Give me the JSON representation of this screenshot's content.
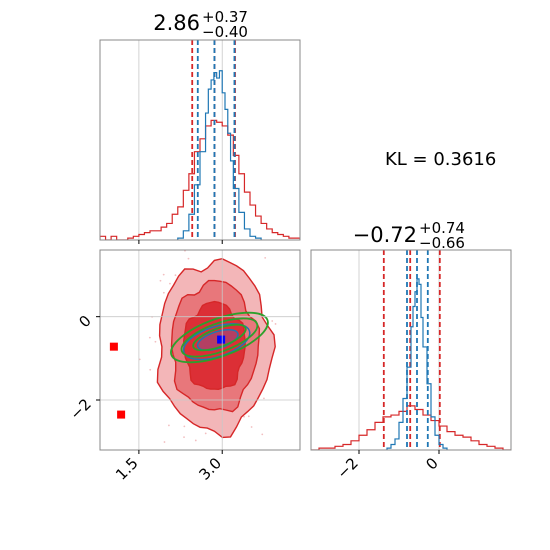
{
  "kl_annotation": "KL = 0.3616",
  "colors": {
    "sample_a": "#d62728",
    "sample_b": "#1f77b4",
    "gaussian": "#2ca02c",
    "marker_a": "#ff0000",
    "marker_b": "#0000ff",
    "grid": "#c8c8c8"
  },
  "chart_data": [
    {
      "type": "histogram",
      "panel": "top-left",
      "title": {
        "value": "2.86",
        "upper": "+0.37",
        "lower": "−0.40"
      },
      "xlim": [
        0.8,
        4.4
      ],
      "grid_x": [
        1.5,
        3.0
      ],
      "series": [
        {
          "name": "",
          "color": "#d62728",
          "quantiles": [
            2.46,
            2.86,
            3.23
          ],
          "bins": [
            [
              0.8,
              0.02
            ],
            [
              0.9,
              0.0
            ],
            [
              1.0,
              0.02
            ],
            [
              1.1,
              0.0
            ],
            [
              1.2,
              0.0
            ],
            [
              1.3,
              0.01
            ],
            [
              1.4,
              0.02
            ],
            [
              1.5,
              0.03
            ],
            [
              1.6,
              0.04
            ],
            [
              1.7,
              0.05
            ],
            [
              1.8,
              0.05
            ],
            [
              1.9,
              0.07
            ],
            [
              2.0,
              0.09
            ],
            [
              2.1,
              0.14
            ],
            [
              2.2,
              0.18
            ],
            [
              2.3,
              0.27
            ],
            [
              2.4,
              0.36
            ],
            [
              2.5,
              0.48
            ],
            [
              2.6,
              0.55
            ],
            [
              2.7,
              0.62
            ],
            [
              2.8,
              0.65
            ],
            [
              2.9,
              0.64
            ],
            [
              3.0,
              0.62
            ],
            [
              3.1,
              0.57
            ],
            [
              3.2,
              0.46
            ],
            [
              3.3,
              0.36
            ],
            [
              3.4,
              0.26
            ],
            [
              3.5,
              0.19
            ],
            [
              3.6,
              0.13
            ],
            [
              3.7,
              0.09
            ],
            [
              3.8,
              0.06
            ],
            [
              3.9,
              0.04
            ],
            [
              4.0,
              0.03
            ],
            [
              4.1,
              0.02
            ],
            [
              4.2,
              0.01
            ],
            [
              4.3,
              0.01
            ]
          ]
        },
        {
          "name": "",
          "color": "#1f77b4",
          "quantiles": [
            2.56,
            2.86,
            3.22
          ],
          "bins": [
            [
              2.2,
              0.01
            ],
            [
              2.3,
              0.05
            ],
            [
              2.4,
              0.14
            ],
            [
              2.5,
              0.3
            ],
            [
              2.6,
              0.48
            ],
            [
              2.7,
              0.69
            ],
            [
              2.75,
              0.82
            ],
            [
              2.8,
              0.87
            ],
            [
              2.85,
              0.91
            ],
            [
              2.9,
              0.88
            ],
            [
              2.95,
              0.92
            ],
            [
              3.0,
              0.8
            ],
            [
              3.05,
              0.71
            ],
            [
              3.1,
              0.58
            ],
            [
              3.15,
              0.43
            ],
            [
              3.2,
              0.28
            ],
            [
              3.3,
              0.15
            ],
            [
              3.4,
              0.06
            ],
            [
              3.5,
              0.02
            ],
            [
              3.6,
              0.01
            ]
          ]
        }
      ]
    },
    {
      "type": "histogram",
      "panel": "bottom-right",
      "title": {
        "value": "−0.72",
        "upper": "+0.74",
        "lower": "−0.66"
      },
      "xlim": [
        -3.2,
        1.8
      ],
      "x_ticks": [
        -2,
        0
      ],
      "x_tick_labels": [
        "−2",
        "0"
      ],
      "series": [
        {
          "name": "",
          "color": "#d62728",
          "quantiles": [
            -1.38,
            -0.72,
            0.02
          ],
          "bins": [
            [
              -3.2,
              0.0
            ],
            [
              -3.0,
              0.01
            ],
            [
              -2.8,
              0.01
            ],
            [
              -2.6,
              0.02
            ],
            [
              -2.4,
              0.03
            ],
            [
              -2.2,
              0.05
            ],
            [
              -2.0,
              0.08
            ],
            [
              -1.8,
              0.11
            ],
            [
              -1.6,
              0.15
            ],
            [
              -1.4,
              0.18
            ],
            [
              -1.2,
              0.19
            ],
            [
              -1.0,
              0.21
            ],
            [
              -0.8,
              0.24
            ],
            [
              -0.6,
              0.22
            ],
            [
              -0.4,
              0.19
            ],
            [
              -0.2,
              0.16
            ],
            [
              0.0,
              0.13
            ],
            [
              0.2,
              0.1
            ],
            [
              0.4,
              0.08
            ],
            [
              0.6,
              0.07
            ],
            [
              0.8,
              0.05
            ],
            [
              1.0,
              0.03
            ],
            [
              1.2,
              0.02
            ],
            [
              1.4,
              0.01
            ],
            [
              1.6,
              0.0
            ]
          ]
        },
        {
          "name": "",
          "color": "#1f77b4",
          "quantiles": [
            -0.8,
            -0.55,
            -0.28
          ],
          "bins": [
            [
              -1.3,
              0.01
            ],
            [
              -1.2,
              0.03
            ],
            [
              -1.1,
              0.06
            ],
            [
              -1.0,
              0.15
            ],
            [
              -0.9,
              0.28
            ],
            [
              -0.8,
              0.45
            ],
            [
              -0.7,
              0.67
            ],
            [
              -0.65,
              0.78
            ],
            [
              -0.6,
              0.86
            ],
            [
              -0.55,
              0.93
            ],
            [
              -0.5,
              0.9
            ],
            [
              -0.45,
              0.72
            ],
            [
              -0.4,
              0.56
            ],
            [
              -0.3,
              0.36
            ],
            [
              -0.2,
              0.18
            ],
            [
              -0.1,
              0.08
            ],
            [
              0.0,
              0.03
            ],
            [
              0.1,
              0.01
            ]
          ]
        }
      ]
    },
    {
      "type": "contour",
      "panel": "bottom-left",
      "xlim": [
        0.8,
        4.4
      ],
      "ylim": [
        -3.2,
        1.6
      ],
      "x_ticks": [
        1.5,
        3.0
      ],
      "x_tick_labels": [
        "1.5",
        "3.0"
      ],
      "y_ticks": [
        0,
        -2
      ],
      "y_tick_labels": [
        "0",
        "−2"
      ],
      "sample_a_levels": [
        {
          "cx": 2.86,
          "cy": -0.72,
          "rx": 1.02,
          "ry": 2.05,
          "fill": "#f3b6b8"
        },
        {
          "cx": 2.86,
          "cy": -0.72,
          "rx": 0.78,
          "ry": 1.55,
          "fill": "#e8777b"
        },
        {
          "cx": 2.86,
          "cy": -0.72,
          "rx": 0.55,
          "ry": 1.05,
          "fill": "#dc2f36"
        }
      ],
      "sample_b_levels": [
        {
          "cx": 2.9,
          "cy": -0.6,
          "rx": 0.62,
          "ry": 0.36,
          "angle": -18
        },
        {
          "cx": 2.92,
          "cy": -0.56,
          "rx": 0.38,
          "ry": 0.2,
          "angle": -18
        }
      ],
      "gaussian_levels": [
        {
          "cx": 2.95,
          "cy": -0.5,
          "rx": 0.92,
          "ry": 0.45,
          "angle": -20
        },
        {
          "cx": 2.95,
          "cy": -0.5,
          "rx": 0.72,
          "ry": 0.34,
          "angle": -20
        },
        {
          "cx": 2.95,
          "cy": -0.5,
          "rx": 0.5,
          "ry": 0.22,
          "angle": -20
        }
      ],
      "markers": [
        {
          "x": 1.05,
          "y": -0.72,
          "color": "#ff0000"
        },
        {
          "x": 1.18,
          "y": -2.35,
          "color": "#ff0000"
        },
        {
          "x": 2.98,
          "y": -0.55,
          "color": "#0000ff"
        }
      ]
    }
  ]
}
